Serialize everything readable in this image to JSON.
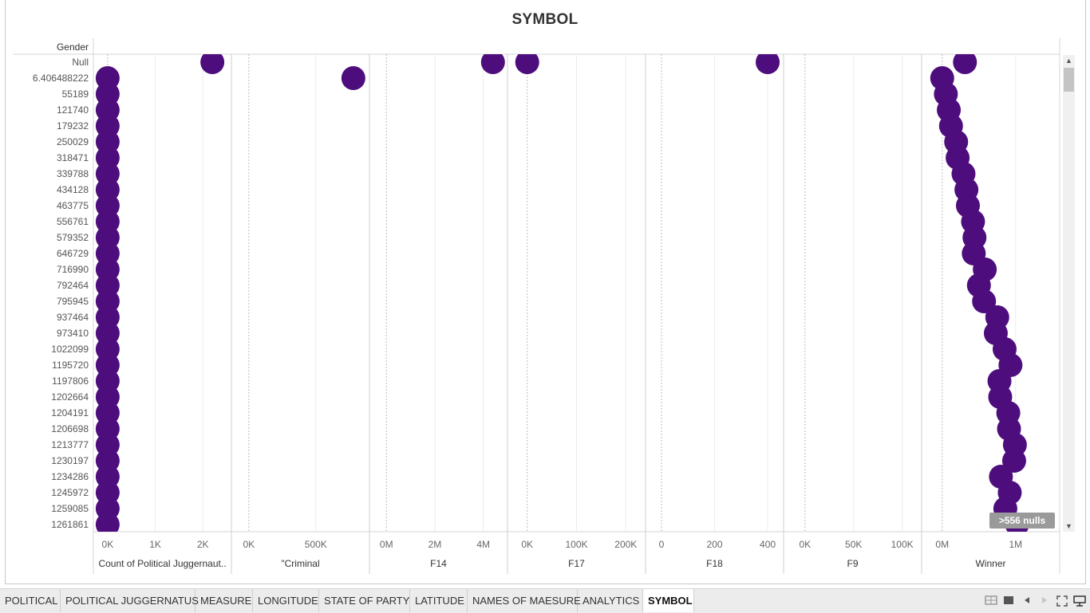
{
  "sheet": {
    "title": "SYMBOL",
    "row_header": "Gender",
    "null_indicator": ">556 nulls"
  },
  "chart_data": {
    "type": "scatter",
    "title": "SYMBOL",
    "row_dimension": "Gender",
    "rows": [
      "Null",
      "6.406488222",
      "55189",
      "121740",
      "179232",
      "250029",
      "318471",
      "339788",
      "434128",
      "463775",
      "556761",
      "579352",
      "646729",
      "716990",
      "792464",
      "795945",
      "937464",
      "973410",
      "1022099",
      "1195720",
      "1197806",
      "1202664",
      "1204191",
      "1206698",
      "1213777",
      "1230197",
      "1234286",
      "1245972",
      "1259085",
      "1261861"
    ],
    "mark_color": "#4e0d7c",
    "panes": [
      {
        "name": "Count of Political Juggernaut..",
        "ticks": [
          "0K",
          "1K",
          "2K"
        ],
        "tick_values": [
          0,
          1000,
          2000
        ],
        "domain": [
          -300,
          2600
        ],
        "values": [
          2200,
          0,
          0,
          0,
          0,
          0,
          0,
          0,
          0,
          0,
          0,
          0,
          0,
          0,
          0,
          0,
          0,
          0,
          0,
          0,
          0,
          0,
          0,
          0,
          0,
          0,
          0,
          0,
          0,
          0
        ]
      },
      {
        "name": "\"Criminal",
        "ticks": [
          "0K",
          "500K"
        ],
        "tick_values": [
          0,
          500000
        ],
        "domain": [
          -130000,
          900000
        ],
        "values": [
          null,
          780000,
          null,
          null,
          null,
          null,
          null,
          null,
          null,
          null,
          null,
          null,
          null,
          null,
          null,
          null,
          null,
          null,
          null,
          null,
          null,
          null,
          null,
          null,
          null,
          null,
          null,
          null,
          null,
          null
        ]
      },
      {
        "name": "F14",
        "ticks": [
          "0M",
          "2M",
          "4M"
        ],
        "tick_values": [
          0,
          2000000,
          4000000
        ],
        "domain": [
          -700000,
          5000000
        ],
        "values": [
          4400000,
          null,
          null,
          null,
          null,
          null,
          null,
          null,
          null,
          null,
          null,
          null,
          null,
          null,
          null,
          null,
          null,
          null,
          null,
          null,
          null,
          null,
          null,
          null,
          null,
          null,
          null,
          null,
          null,
          null
        ]
      },
      {
        "name": "F17",
        "ticks": [
          "0K",
          "100K",
          "200K"
        ],
        "tick_values": [
          0,
          100000,
          200000
        ],
        "domain": [
          -40000,
          240000
        ],
        "values": [
          0,
          null,
          null,
          null,
          null,
          null,
          null,
          null,
          null,
          null,
          null,
          null,
          null,
          null,
          null,
          null,
          null,
          null,
          null,
          null,
          null,
          null,
          null,
          null,
          null,
          null,
          null,
          null,
          null,
          null
        ]
      },
      {
        "name": "F18",
        "ticks": [
          "0",
          "200",
          "400"
        ],
        "tick_values": [
          0,
          200,
          400
        ],
        "domain": [
          -60,
          460
        ],
        "values": [
          400,
          null,
          null,
          null,
          null,
          null,
          null,
          null,
          null,
          null,
          null,
          null,
          null,
          null,
          null,
          null,
          null,
          null,
          null,
          null,
          null,
          null,
          null,
          null,
          null,
          null,
          null,
          null,
          null,
          null
        ]
      },
      {
        "name": "F9",
        "ticks": [
          "0K",
          "50K",
          "100K"
        ],
        "tick_values": [
          0,
          50000,
          100000
        ],
        "domain": [
          -22000,
          120000
        ],
        "values": [
          null,
          null,
          null,
          null,
          null,
          null,
          null,
          null,
          null,
          null,
          null,
          null,
          null,
          null,
          null,
          null,
          null,
          null,
          null,
          null,
          null,
          null,
          null,
          null,
          null,
          null,
          null,
          null,
          null,
          null
        ]
      },
      {
        "name": "Winner",
        "ticks": [
          "0M",
          "1M"
        ],
        "tick_values": [
          0,
          1000000
        ],
        "domain": [
          -280000,
          1600000
        ],
        "values": [
          310000,
          0,
          50000,
          90000,
          120000,
          190000,
          210000,
          290000,
          330000,
          350000,
          420000,
          440000,
          430000,
          580000,
          500000,
          570000,
          750000,
          730000,
          850000,
          930000,
          780000,
          790000,
          900000,
          910000,
          990000,
          980000,
          800000,
          920000,
          860000,
          1020000
        ]
      }
    ]
  },
  "tabs": [
    {
      "label": "POLITICAL",
      "active": false
    },
    {
      "label": "POLITICAL JUGGERNATUS",
      "active": false
    },
    {
      "label": "MEASURE",
      "active": false
    },
    {
      "label": "LONGITUDE",
      "active": false
    },
    {
      "label": "STATE OF PARTY",
      "active": false
    },
    {
      "label": "LATITUDE",
      "active": false
    },
    {
      "label": "NAMES OF MAESURE",
      "active": false
    },
    {
      "label": "ANALYTICS",
      "active": false
    },
    {
      "label": "SYMBOL",
      "active": true
    }
  ],
  "status_icons": [
    "grid-view-icon",
    "single-view-icon",
    "previous-icon",
    "next-icon",
    "fullscreen-icon",
    "presentation-icon"
  ]
}
